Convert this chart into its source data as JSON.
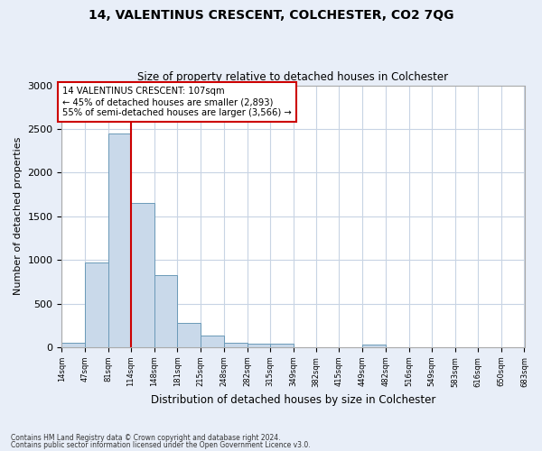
{
  "title": "14, VALENTINUS CRESCENT, COLCHESTER, CO2 7QG",
  "subtitle": "Size of property relative to detached houses in Colchester",
  "xlabel": "Distribution of detached houses by size in Colchester",
  "ylabel": "Number of detached properties",
  "footer_line1": "Contains HM Land Registry data © Crown copyright and database right 2024.",
  "footer_line2": "Contains public sector information licensed under the Open Government Licence v3.0.",
  "bar_edges": [
    14,
    47,
    81,
    114,
    148,
    181,
    215,
    248,
    282,
    315,
    349,
    382,
    415,
    449,
    482,
    516,
    549,
    583,
    616,
    650,
    683
  ],
  "bar_heights": [
    55,
    975,
    2450,
    1650,
    825,
    280,
    130,
    55,
    45,
    40,
    0,
    0,
    0,
    30,
    0,
    0,
    0,
    0,
    0,
    0
  ],
  "bar_color": "#c9d9ea",
  "bar_edge_color": "#6b9ab8",
  "ref_line_x": 114,
  "ref_line_color": "#cc0000",
  "annotation_text": "14 VALENTINUS CRESCENT: 107sqm\n← 45% of detached houses are smaller (2,893)\n55% of semi-detached houses are larger (3,566) →",
  "annotation_box_color": "#cc0000",
  "annotation_bg": "#ffffff",
  "ylim": [
    0,
    3000
  ],
  "yticks": [
    0,
    500,
    1000,
    1500,
    2000,
    2500,
    3000
  ],
  "grid_color": "#c8d4e4",
  "bg_color": "#e8eef8",
  "plot_bg_color": "#ffffff"
}
